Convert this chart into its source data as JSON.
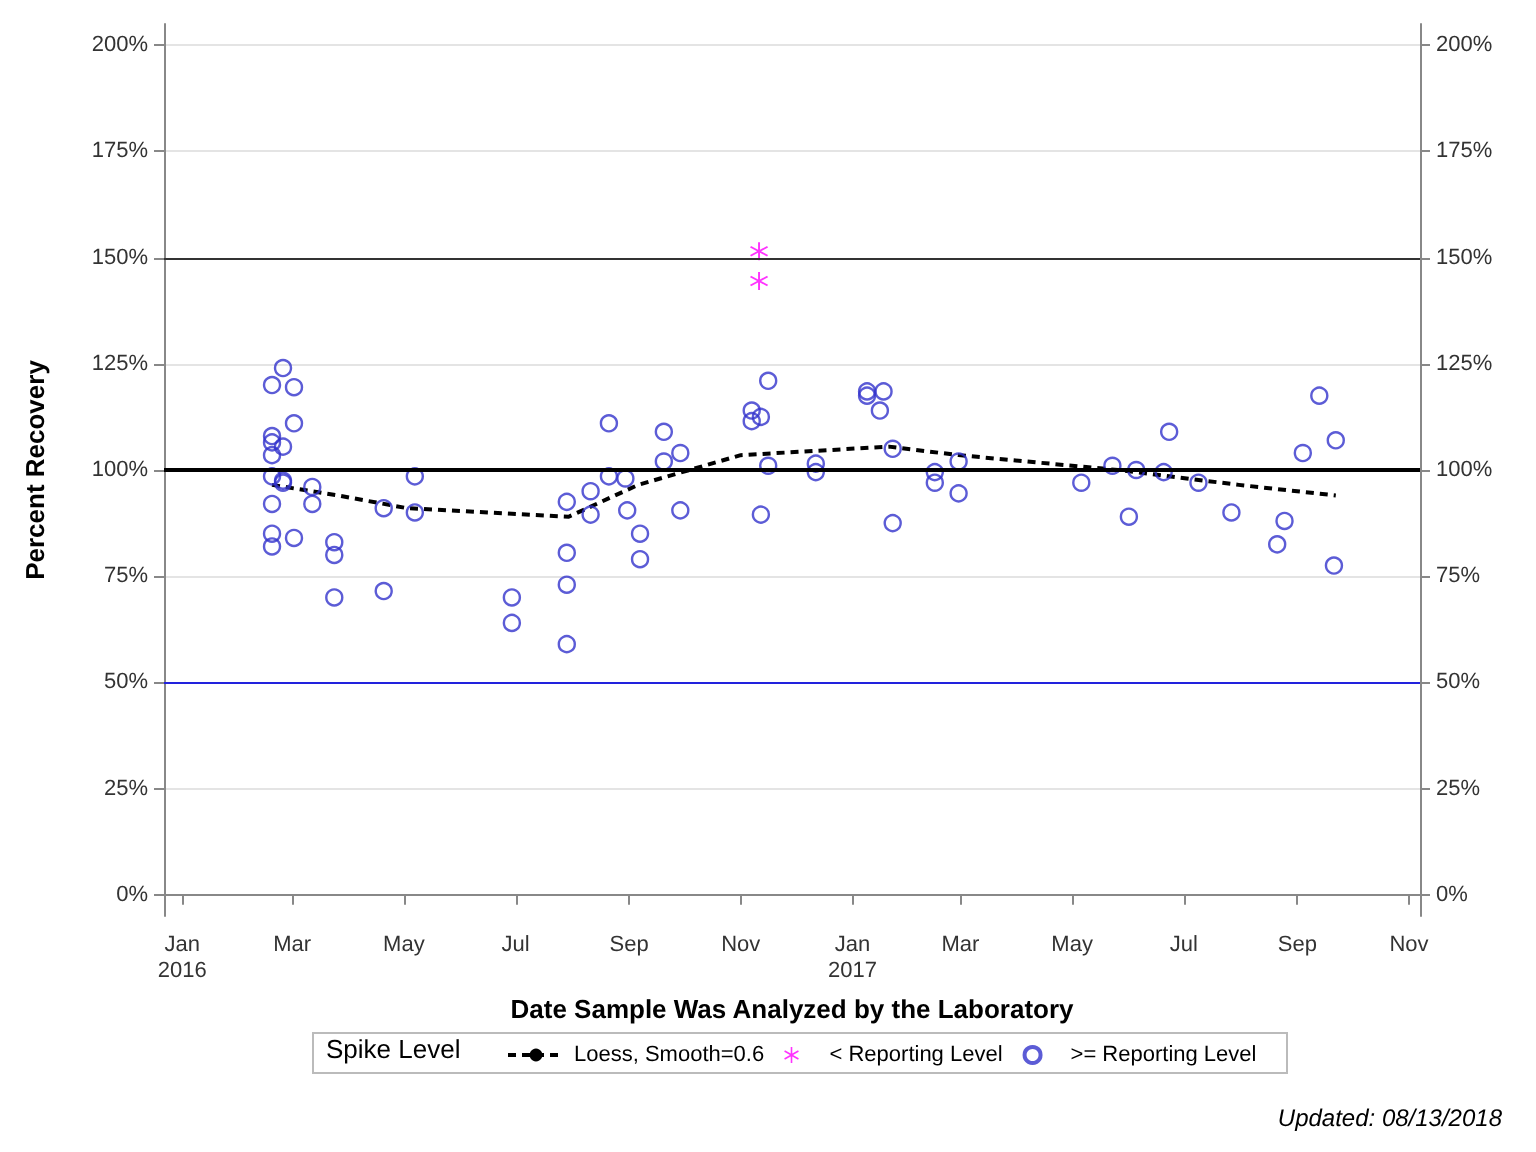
{
  "chart_data": {
    "type": "scatter",
    "xlabel": "Date Sample Was Analyzed by the Laboratory",
    "ylabel": "Percent Recovery",
    "legend_title": "Spike Level",
    "legend": "bottom",
    "grid": "y",
    "xlim": [
      "2015-12-22",
      "2017-11-07"
    ],
    "xticks": [
      {
        "value": "2016-01-01",
        "label": "Jan\n2016"
      },
      {
        "value": "2016-03-01",
        "label": "Mar"
      },
      {
        "value": "2016-05-01",
        "label": "May"
      },
      {
        "value": "2016-07-01",
        "label": "Jul"
      },
      {
        "value": "2016-09-01",
        "label": "Sep"
      },
      {
        "value": "2016-11-01",
        "label": "Nov"
      },
      {
        "value": "2017-01-01",
        "label": "Jan\n2017"
      },
      {
        "value": "2017-03-01",
        "label": "Mar"
      },
      {
        "value": "2017-05-01",
        "label": "May"
      },
      {
        "value": "2017-07-01",
        "label": "Jul"
      },
      {
        "value": "2017-09-01",
        "label": "Sep"
      },
      {
        "value": "2017-11-01",
        "label": "Nov"
      }
    ],
    "ylim": [
      -5,
      205
    ],
    "yticks": [
      {
        "value": 0,
        "label": "0%"
      },
      {
        "value": 25,
        "label": "25%"
      },
      {
        "value": 50,
        "label": "50%"
      },
      {
        "value": 75,
        "label": "75%"
      },
      {
        "value": 100,
        "label": "100%"
      },
      {
        "value": 125,
        "label": "125%"
      },
      {
        "value": 150,
        "label": "150%"
      },
      {
        "value": 175,
        "label": "175%"
      },
      {
        "value": 200,
        "label": "200%"
      }
    ],
    "y2lim": [
      -5,
      205
    ],
    "y2ticks": [
      {
        "value": 0,
        "label": "0%"
      },
      {
        "value": 25,
        "label": "25%"
      },
      {
        "value": 50,
        "label": "50%"
      },
      {
        "value": 75,
        "label": "75%"
      },
      {
        "value": 100,
        "label": "100%"
      },
      {
        "value": 125,
        "label": "125%"
      },
      {
        "value": 150,
        "label": "150%"
      },
      {
        "value": 175,
        "label": "175%"
      },
      {
        "value": 200,
        "label": "200%"
      }
    ],
    "ref_lines": [
      {
        "axis": "y",
        "value": 100,
        "color": "#000000"
      },
      {
        "axis": "y",
        "value": 150,
        "color": "#333333"
      },
      {
        "axis": "y",
        "value": 50,
        "color": "#2222dd"
      }
    ],
    "series": [
      {
        "name": "Loess, Smooth=0.6",
        "type": "line",
        "color": "#000000",
        "line_style": "dashed",
        "marker": "none",
        "x": [
          "2016-02-19",
          "2016-03-26",
          "2016-05-03",
          "2016-07-30",
          "2016-09-06",
          "2016-11-01",
          "2017-01-21",
          "2017-02-28",
          "2017-05-26",
          "2017-07-31",
          "2017-09-22"
        ],
        "values": [
          96.5,
          94,
          91,
          89,
          96.5,
          103.5,
          105.5,
          103.5,
          100,
          96.5,
          94
        ]
      },
      {
        "name": "< Reporting Level",
        "color": "#ff00ff",
        "marker": "star",
        "x": [
          "2016-11-11",
          "2016-11-11"
        ],
        "values": [
          151.5,
          144.5
        ]
      },
      {
        "name": ">= Reporting Level",
        "color": "#3333cc",
        "marker": "circle",
        "x": [
          "2016-02-19",
          "2016-02-25",
          "2016-03-02",
          "2016-03-02",
          "2016-02-19",
          "2016-02-19",
          "2016-02-25",
          "2016-02-19",
          "2016-02-25",
          "2016-02-19",
          "2016-02-25",
          "2016-02-19",
          "2016-03-12",
          "2016-03-12",
          "2016-02-19",
          "2016-03-02",
          "2016-02-19",
          "2016-03-24",
          "2016-03-24",
          "2016-03-24",
          "2016-04-20",
          "2016-04-20",
          "2016-05-07",
          "2016-05-07",
          "2016-06-29",
          "2016-06-29",
          "2016-07-29",
          "2016-07-29",
          "2016-07-29",
          "2016-07-29",
          "2016-08-11",
          "2016-08-11",
          "2016-08-21",
          "2016-08-21",
          "2016-08-30",
          "2016-08-31",
          "2016-09-07",
          "2016-09-07",
          "2016-09-20",
          "2016-09-20",
          "2016-09-29",
          "2016-09-29",
          "2016-11-07",
          "2016-11-07",
          "2016-11-12",
          "2016-11-16",
          "2016-11-16",
          "2016-11-12",
          "2016-12-12",
          "2016-12-12",
          "2017-01-09",
          "2017-01-09",
          "2017-01-18",
          "2017-01-16",
          "2017-01-23",
          "2017-01-23",
          "2017-02-15",
          "2017-02-15",
          "2017-02-28",
          "2017-02-28",
          "2017-05-06",
          "2017-05-23",
          "2017-06-01",
          "2017-06-05",
          "2017-06-20",
          "2017-06-23",
          "2017-07-09",
          "2017-07-27",
          "2017-08-21",
          "2017-08-25",
          "2017-09-04",
          "2017-09-13",
          "2017-09-22",
          "2017-09-21"
        ],
        "values": [
          120,
          124,
          119.5,
          111,
          108,
          106.5,
          105.5,
          103.5,
          97.5,
          98.5,
          97,
          92,
          96,
          92,
          85,
          84,
          82,
          83,
          80,
          70,
          91,
          71.5,
          98.5,
          90,
          70,
          64,
          92.5,
          80.5,
          73,
          59,
          95,
          89.5,
          111,
          98.5,
          98,
          90.5,
          85,
          79,
          109,
          102,
          104,
          90.5,
          114,
          111.5,
          112.5,
          121,
          101,
          89.5,
          101.5,
          99.5,
          118.5,
          117.5,
          118.5,
          114,
          105,
          87.5,
          97,
          99.5,
          102,
          94.5,
          97,
          101,
          89,
          100,
          99.5,
          109,
          97,
          90,
          82.5,
          88,
          104,
          117.5,
          107,
          77.5
        ]
      }
    ],
    "annotations": [
      "Updated: 08/13/2018"
    ]
  }
}
